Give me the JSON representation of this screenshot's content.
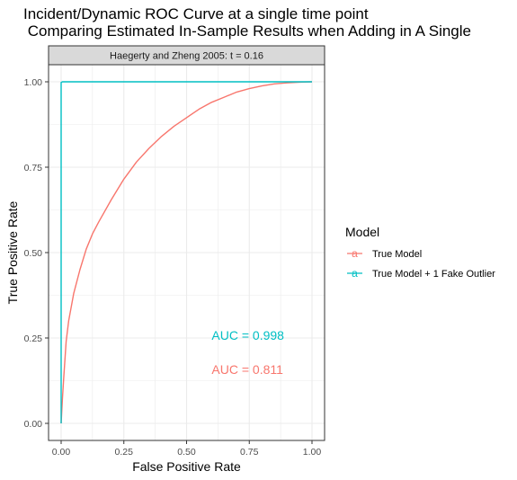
{
  "chart_data": {
    "type": "line",
    "title": "Incident/Dynamic ROC Curve at a single time point",
    "subtitle": " Comparing Estimated In-Sample Results when Adding in A Single",
    "facet_label": "Haegerty and Zheng 2005: t = 0.16",
    "xlabel": "False Positive Rate",
    "ylabel": "True Positive Rate",
    "xlim": [
      0,
      1
    ],
    "ylim": [
      0,
      1
    ],
    "x_ticks": [
      "0.00",
      "0.25",
      "0.50",
      "0.75",
      "1.00"
    ],
    "y_ticks": [
      "0.00",
      "0.25",
      "0.50",
      "0.75",
      "1.00"
    ],
    "grid": true,
    "legend": {
      "title": "Model",
      "position": "right",
      "key_glyph": "a",
      "entries": [
        "True Model",
        "True Model + 1 Fake Outlier"
      ]
    },
    "series": [
      {
        "name": "True Model",
        "color": "#F8766D",
        "x": [
          0.0,
          0.005,
          0.01,
          0.02,
          0.03,
          0.05,
          0.075,
          0.1,
          0.125,
          0.15,
          0.2,
          0.25,
          0.3,
          0.35,
          0.4,
          0.45,
          0.5,
          0.55,
          0.6,
          0.65,
          0.7,
          0.75,
          0.8,
          0.85,
          0.9,
          0.95,
          1.0
        ],
        "y": [
          0.0,
          0.07,
          0.13,
          0.24,
          0.3,
          0.38,
          0.45,
          0.51,
          0.555,
          0.59,
          0.655,
          0.715,
          0.765,
          0.805,
          0.84,
          0.87,
          0.895,
          0.92,
          0.94,
          0.955,
          0.97,
          0.98,
          0.988,
          0.994,
          0.997,
          0.999,
          1.0
        ]
      },
      {
        "name": "True Model + 1 Fake Outlier",
        "color": "#00BFC4",
        "x": [
          0.0,
          0.0,
          0.005,
          1.0
        ],
        "y": [
          0.0,
          0.998,
          1.0,
          1.0
        ]
      }
    ],
    "annotations": [
      {
        "text": "AUC = 0.998",
        "x": 0.6,
        "y": 0.245,
        "color": "#00BFC4"
      },
      {
        "text": "AUC = 0.811",
        "x": 0.6,
        "y": 0.145,
        "color": "#F8766D"
      }
    ]
  }
}
